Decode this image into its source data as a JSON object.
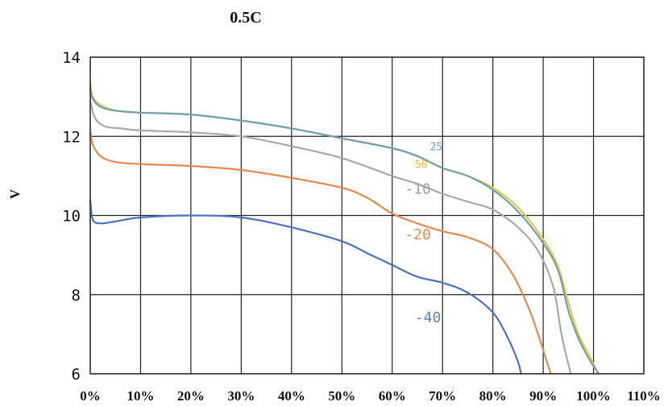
{
  "chart_data": {
    "type": "line",
    "title": "0.5C",
    "xlabel": "",
    "ylabel": "V",
    "xlim": [
      0,
      110
    ],
    "ylim": [
      6,
      14
    ],
    "x_unit": "%",
    "x_ticks": [
      "0%",
      "10%",
      "20%",
      "30%",
      "40%",
      "50%",
      "60%",
      "70%",
      "80%",
      "90%",
      "100%",
      "110%"
    ],
    "y_ticks": [
      "6",
      "8",
      "10",
      "12",
      "14"
    ],
    "grid": true,
    "legend": "inline labels",
    "series": [
      {
        "name": "50",
        "color": "#e8c640",
        "points": [
          [
            0,
            13.4
          ],
          [
            0.5,
            13.0
          ],
          [
            2,
            12.8
          ],
          [
            5,
            12.65
          ],
          [
            10,
            12.6
          ],
          [
            20,
            12.55
          ],
          [
            30,
            12.4
          ],
          [
            40,
            12.2
          ],
          [
            50,
            11.95
          ],
          [
            60,
            11.7
          ],
          [
            65,
            11.5
          ],
          [
            70,
            11.2
          ],
          [
            75,
            11.0
          ],
          [
            80,
            10.7
          ],
          [
            85,
            10.2
          ],
          [
            90,
            9.4
          ],
          [
            93,
            8.7
          ],
          [
            95,
            7.8
          ],
          [
            97,
            7.0
          ],
          [
            99,
            6.5
          ],
          [
            101,
            6.0
          ]
        ]
      },
      {
        "name": "25",
        "color": "#6fa0b0",
        "points": [
          [
            0,
            13.2
          ],
          [
            0.5,
            12.95
          ],
          [
            2,
            12.75
          ],
          [
            5,
            12.65
          ],
          [
            10,
            12.6
          ],
          [
            20,
            12.55
          ],
          [
            30,
            12.4
          ],
          [
            40,
            12.2
          ],
          [
            50,
            11.95
          ],
          [
            60,
            11.7
          ],
          [
            65,
            11.5
          ],
          [
            70,
            11.2
          ],
          [
            75,
            11.0
          ],
          [
            80,
            10.65
          ],
          [
            85,
            10.1
          ],
          [
            90,
            9.3
          ],
          [
            93,
            8.6
          ],
          [
            95,
            7.6
          ],
          [
            97,
            6.9
          ],
          [
            99,
            6.4
          ],
          [
            101,
            6.0
          ]
        ]
      },
      {
        "name": "-10",
        "color": "#a8a8a8",
        "points": [
          [
            0,
            12.9
          ],
          [
            1,
            12.45
          ],
          [
            3,
            12.25
          ],
          [
            6,
            12.2
          ],
          [
            10,
            12.15
          ],
          [
            20,
            12.1
          ],
          [
            30,
            12.0
          ],
          [
            40,
            11.75
          ],
          [
            50,
            11.45
          ],
          [
            60,
            11.0
          ],
          [
            65,
            10.8
          ],
          [
            70,
            10.55
          ],
          [
            75,
            10.35
          ],
          [
            80,
            10.15
          ],
          [
            85,
            9.7
          ],
          [
            89,
            9.1
          ],
          [
            92,
            8.2
          ],
          [
            93.5,
            7.1
          ],
          [
            94.5,
            6.5
          ],
          [
            95.5,
            6.0
          ]
        ]
      },
      {
        "name": "-20",
        "color": "#e08a50",
        "points": [
          [
            0,
            12.15
          ],
          [
            0.5,
            11.8
          ],
          [
            2,
            11.5
          ],
          [
            5,
            11.35
          ],
          [
            10,
            11.3
          ],
          [
            20,
            11.25
          ],
          [
            30,
            11.15
          ],
          [
            40,
            10.95
          ],
          [
            50,
            10.7
          ],
          [
            55,
            10.45
          ],
          [
            60,
            10.05
          ],
          [
            65,
            9.8
          ],
          [
            70,
            9.6
          ],
          [
            75,
            9.45
          ],
          [
            80,
            9.15
          ],
          [
            84,
            8.5
          ],
          [
            87,
            7.7
          ],
          [
            89,
            7.0
          ],
          [
            90.5,
            6.4
          ],
          [
            91.5,
            6.0
          ]
        ]
      },
      {
        "name": "-40",
        "color": "#4a72c0",
        "points": [
          [
            0,
            10.4
          ],
          [
            0.5,
            9.9
          ],
          [
            2,
            9.8
          ],
          [
            5,
            9.85
          ],
          [
            10,
            9.95
          ],
          [
            20,
            10.0
          ],
          [
            30,
            9.95
          ],
          [
            40,
            9.7
          ],
          [
            50,
            9.35
          ],
          [
            55,
            9.05
          ],
          [
            60,
            8.75
          ],
          [
            65,
            8.45
          ],
          [
            70,
            8.3
          ],
          [
            75,
            8.05
          ],
          [
            80,
            7.55
          ],
          [
            83,
            6.9
          ],
          [
            85,
            6.3
          ],
          [
            85.6,
            6.0
          ]
        ]
      }
    ],
    "annotations": [
      {
        "text": "25",
        "x": 67.5,
        "y": 11.65,
        "color": "#6fa0b0",
        "size": "small"
      },
      {
        "text": "50",
        "x": 64.5,
        "y": 11.2,
        "color": "#e8b040",
        "size": "small"
      },
      {
        "text": "-10",
        "x": 62.5,
        "y": 10.55,
        "color": "#a0a0a0",
        "size": "large"
      },
      {
        "text": "-20",
        "x": 62.5,
        "y": 9.4,
        "color": "#e08a50",
        "size": "large"
      },
      {
        "text": "-40",
        "x": 64.5,
        "y": 7.3,
        "color": "#6080b0",
        "size": "large"
      }
    ]
  }
}
